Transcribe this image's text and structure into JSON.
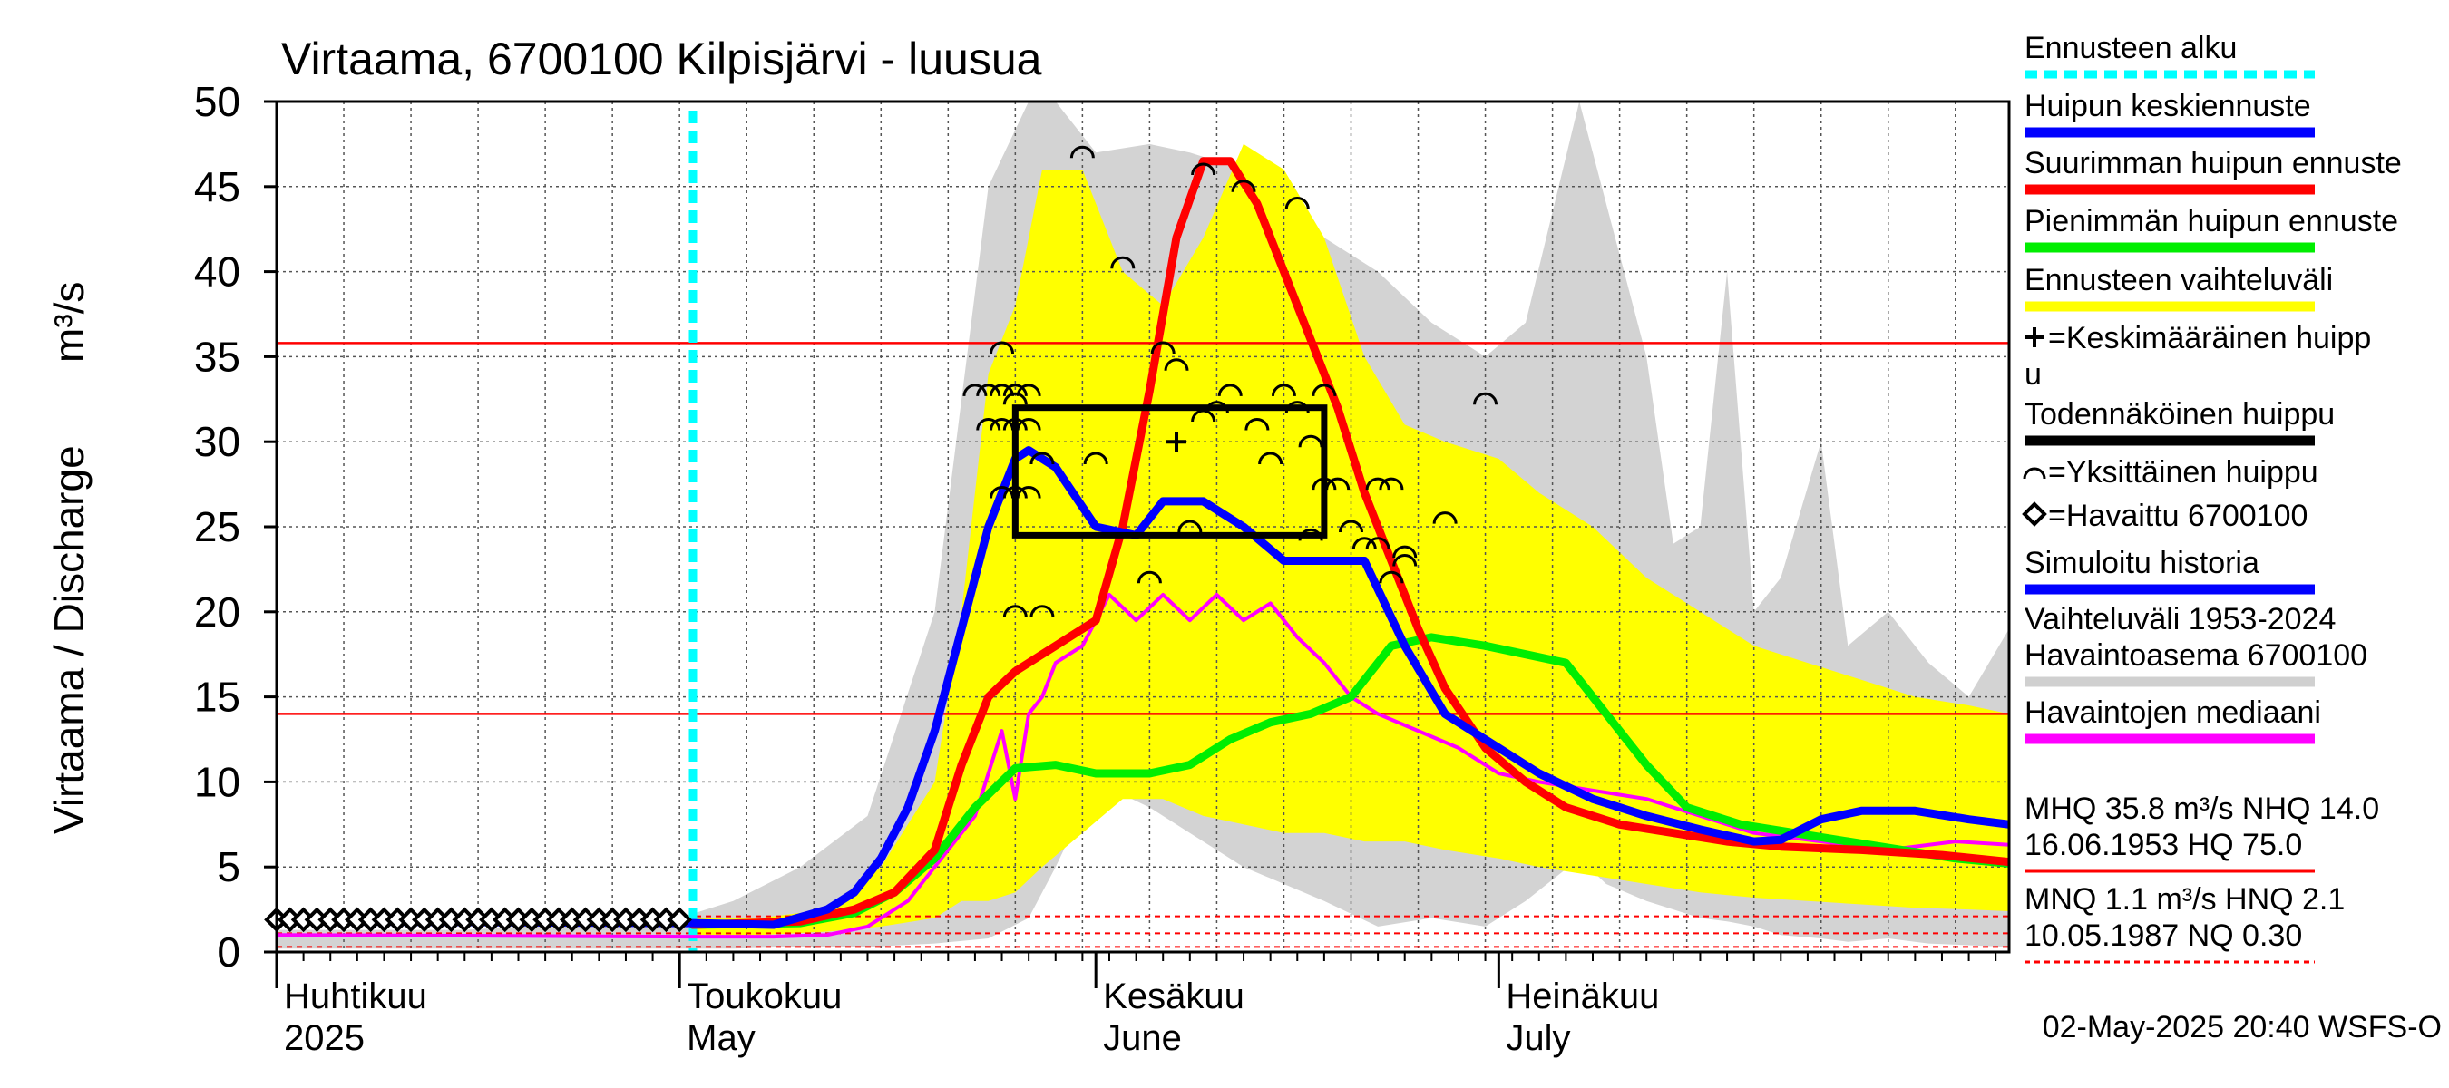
{
  "chart_data": {
    "type": "line",
    "title": "Virtaama, 6700100 Kilpisjärvi - luusua",
    "ylabel": "Virtaama / Discharge",
    "yunit": "m³/s",
    "ylim": [
      0,
      50
    ],
    "yticks": [
      0,
      5,
      10,
      15,
      20,
      25,
      30,
      35,
      40,
      45,
      50
    ],
    "xlim": [
      "2025-04-01",
      "2025-08-08"
    ],
    "x_month_labels": [
      {
        "line1": "Huhtikuu",
        "line2": "2025",
        "date": "2025-04-01"
      },
      {
        "line1": "Toukokuu",
        "line2": "May",
        "date": "2025-05-01"
      },
      {
        "line1": "Kesäkuu",
        "line2": "June",
        "date": "2025-06-01"
      },
      {
        "line1": "Heinäkuu",
        "line2": "July",
        "date": "2025-07-01"
      }
    ],
    "grid": true,
    "legend_position": "right",
    "forecast_start": "2025-05-02",
    "reference_lines": [
      {
        "name": "MHQ",
        "value": 35.8,
        "color": "#ff0000",
        "style": "solid"
      },
      {
        "name": "NHQ",
        "value": 14.0,
        "color": "#ff0000",
        "style": "solid"
      },
      {
        "name": "MNQ",
        "value": 1.1,
        "color": "#ff0000",
        "style": "dashed"
      },
      {
        "name": "HNQ",
        "value": 2.1,
        "color": "#ff0000",
        "style": "dashed"
      },
      {
        "name": "NQ",
        "value": 0.3,
        "color": "#ff0000",
        "style": "dashed"
      }
    ],
    "historical_range": {
      "x": [
        "2025-04-01",
        "2025-04-15",
        "2025-05-01",
        "2025-05-05",
        "2025-05-10",
        "2025-05-15",
        "2025-05-20",
        "2025-05-24",
        "2025-05-27",
        "2025-05-29",
        "2025-06-01",
        "2025-06-05",
        "2025-06-08",
        "2025-06-12",
        "2025-06-15",
        "2025-06-18",
        "2025-06-22",
        "2025-06-26",
        "2025-06-30",
        "2025-07-03",
        "2025-07-07",
        "2025-07-09",
        "2025-07-12",
        "2025-07-14",
        "2025-07-16",
        "2025-07-18",
        "2025-07-20",
        "2025-07-22",
        "2025-07-25",
        "2025-07-27",
        "2025-07-30",
        "2025-08-02",
        "2025-08-05",
        "2025-08-08"
      ],
      "max": [
        1.3,
        1.3,
        2.0,
        3.0,
        5.0,
        8.0,
        20.0,
        45.0,
        50.0,
        50.0,
        47.0,
        47.5,
        47.0,
        46.0,
        44.0,
        42.0,
        40.0,
        37.0,
        35.0,
        37.0,
        50.0,
        44.0,
        35.0,
        24.0,
        25.0,
        40.0,
        20.0,
        22.0,
        30.0,
        18.0,
        20.0,
        17.0,
        15.0,
        19.0
      ],
      "min": [
        0.2,
        0.2,
        0.2,
        0.2,
        0.3,
        0.3,
        0.5,
        0.8,
        2.0,
        5.0,
        10.0,
        8.5,
        7.0,
        5.0,
        4.0,
        3.0,
        1.5,
        2.0,
        1.5,
        3.0,
        5.5,
        4.0,
        3.0,
        2.5,
        2.0,
        1.8,
        1.5,
        1.0,
        0.8,
        0.6,
        0.8,
        0.5,
        0.4,
        0.3
      ]
    },
    "forecast_range": {
      "x": [
        "2025-05-02",
        "2025-05-07",
        "2025-05-12",
        "2025-05-16",
        "2025-05-20",
        "2025-05-22",
        "2025-05-24",
        "2025-05-26",
        "2025-05-28",
        "2025-05-31",
        "2025-06-03",
        "2025-06-06",
        "2025-06-09",
        "2025-06-12",
        "2025-06-15",
        "2025-06-18",
        "2025-06-21",
        "2025-06-24",
        "2025-06-27",
        "2025-07-01",
        "2025-07-04",
        "2025-07-08",
        "2025-07-12",
        "2025-07-16",
        "2025-07-20",
        "2025-07-24",
        "2025-07-28",
        "2025-08-01",
        "2025-08-05",
        "2025-08-08"
      ],
      "max": [
        2.0,
        2.0,
        2.5,
        5.0,
        10.0,
        20.0,
        34.0,
        38.0,
        46.0,
        46.0,
        40.0,
        38.0,
        42.0,
        47.5,
        46.0,
        42.0,
        35.0,
        31.0,
        30.0,
        29.0,
        27.0,
        25.0,
        22.0,
        20.0,
        18.0,
        17.0,
        16.0,
        15.0,
        14.5,
        14.0
      ],
      "min": [
        1.0,
        1.0,
        1.2,
        1.5,
        2.0,
        3.0,
        3.0,
        3.5,
        5.0,
        7.0,
        9.0,
        9.0,
        8.0,
        7.5,
        7.0,
        7.0,
        6.5,
        6.5,
        6.0,
        5.5,
        5.0,
        4.5,
        4.0,
        3.5,
        3.2,
        3.0,
        2.8,
        2.6,
        2.5,
        2.4
      ]
    },
    "series": [
      {
        "name": "Huipun keskiennuste",
        "color": "#0000ff",
        "x": [
          "2025-04-01",
          "2025-05-02",
          "2025-05-08",
          "2025-05-12",
          "2025-05-14",
          "2025-05-16",
          "2025-05-18",
          "2025-05-20",
          "2025-05-22",
          "2025-05-24",
          "2025-05-26",
          "2025-05-27",
          "2025-05-29",
          "2025-06-01",
          "2025-06-04",
          "2025-06-06",
          "2025-06-09",
          "2025-06-12",
          "2025-06-15",
          "2025-06-18",
          "2025-06-21",
          "2025-06-24",
          "2025-06-27",
          "2025-07-01",
          "2025-07-04",
          "2025-07-08",
          "2025-07-12",
          "2025-07-16",
          "2025-07-20",
          "2025-07-22",
          "2025-07-25",
          "2025-07-28",
          "2025-08-01",
          "2025-08-05",
          "2025-08-08"
        ],
        "y": [
          1.8,
          1.7,
          1.6,
          2.5,
          3.5,
          5.5,
          8.5,
          13.0,
          19.0,
          25.0,
          29.0,
          29.5,
          28.5,
          25.0,
          24.5,
          26.5,
          26.5,
          25.0,
          23.0,
          23.0,
          23.0,
          18.0,
          14.0,
          12.0,
          10.5,
          9.0,
          8.0,
          7.2,
          6.5,
          6.6,
          7.8,
          8.3,
          8.3,
          7.8,
          7.5
        ]
      },
      {
        "name": "Suurimman huipun ennuste",
        "color": "#ff0000",
        "x": [
          "2025-05-02",
          "2025-05-10",
          "2025-05-14",
          "2025-05-17",
          "2025-05-20",
          "2025-05-22",
          "2025-05-24",
          "2025-05-26",
          "2025-05-29",
          "2025-06-01",
          "2025-06-03",
          "2025-06-05",
          "2025-06-07",
          "2025-06-09",
          "2025-06-11",
          "2025-06-13",
          "2025-06-15",
          "2025-06-17",
          "2025-06-19",
          "2025-06-21",
          "2025-06-23",
          "2025-06-25",
          "2025-06-27",
          "2025-06-30",
          "2025-07-03",
          "2025-07-06",
          "2025-07-10",
          "2025-07-14",
          "2025-07-18",
          "2025-07-22",
          "2025-07-28",
          "2025-08-03",
          "2025-08-08"
        ],
        "y": [
          1.6,
          1.8,
          2.5,
          3.5,
          6.0,
          11.0,
          15.0,
          16.5,
          18.0,
          19.5,
          25.0,
          33.0,
          42.0,
          46.5,
          46.5,
          44.0,
          40.0,
          36.0,
          32.0,
          27.0,
          23.0,
          19.0,
          15.5,
          12.0,
          10.0,
          8.5,
          7.5,
          7.0,
          6.5,
          6.2,
          6.0,
          5.7,
          5.3
        ]
      },
      {
        "name": "Pienimmän huipun ennuste",
        "color": "#00ee00",
        "x": [
          "2025-05-02",
          "2025-05-10",
          "2025-05-14",
          "2025-05-17",
          "2025-05-20",
          "2025-05-23",
          "2025-05-26",
          "2025-05-29",
          "2025-06-01",
          "2025-06-05",
          "2025-06-08",
          "2025-06-11",
          "2025-06-14",
          "2025-06-17",
          "2025-06-20",
          "2025-06-23",
          "2025-06-26",
          "2025-06-30",
          "2025-07-03",
          "2025-07-06",
          "2025-07-09",
          "2025-07-12",
          "2025-07-15",
          "2025-07-19",
          "2025-07-23",
          "2025-07-27",
          "2025-07-31",
          "2025-08-04",
          "2025-08-08"
        ],
        "y": [
          1.6,
          1.7,
          2.3,
          3.5,
          5.5,
          8.5,
          10.8,
          11.0,
          10.5,
          10.5,
          11.0,
          12.5,
          13.5,
          14.0,
          15.0,
          18.0,
          18.5,
          18.0,
          17.5,
          17.0,
          14.0,
          11.0,
          8.5,
          7.5,
          7.0,
          6.5,
          6.0,
          5.5,
          5.2
        ]
      },
      {
        "name": "Havaintojen mediaani",
        "color": "#ff00ff",
        "x": [
          "2025-04-01",
          "2025-05-02",
          "2025-05-08",
          "2025-05-12",
          "2025-05-15",
          "2025-05-18",
          "2025-05-21",
          "2025-05-23",
          "2025-05-25",
          "2025-05-26",
          "2025-05-27",
          "2025-05-28",
          "2025-05-29",
          "2025-05-31",
          "2025-06-02",
          "2025-06-04",
          "2025-06-06",
          "2025-06-08",
          "2025-06-10",
          "2025-06-12",
          "2025-06-14",
          "2025-06-16",
          "2025-06-18",
          "2025-06-20",
          "2025-06-22",
          "2025-06-25",
          "2025-06-28",
          "2025-07-01",
          "2025-07-04",
          "2025-07-08",
          "2025-07-12",
          "2025-07-16",
          "2025-07-20",
          "2025-07-25",
          "2025-07-30",
          "2025-08-04",
          "2025-08-08"
        ],
        "y": [
          1.0,
          0.9,
          0.9,
          1.0,
          1.5,
          3.0,
          6.0,
          8.0,
          13.0,
          9.0,
          14.0,
          15.0,
          17.0,
          18.0,
          21.0,
          19.5,
          21.0,
          19.5,
          21.0,
          19.5,
          20.5,
          18.5,
          17.0,
          15.0,
          14.0,
          13.0,
          12.0,
          10.5,
          10.0,
          9.5,
          9.0,
          8.0,
          7.0,
          6.5,
          6.0,
          6.5,
          6.3
        ]
      }
    ],
    "observed": {
      "name": "Havaittu 6700100",
      "x": [
        "2025-04-01",
        "2025-04-02",
        "2025-04-03",
        "2025-04-04",
        "2025-04-05",
        "2025-04-06",
        "2025-04-07",
        "2025-04-08",
        "2025-04-09",
        "2025-04-10",
        "2025-04-11",
        "2025-04-12",
        "2025-04-13",
        "2025-04-14",
        "2025-04-15",
        "2025-04-16",
        "2025-04-17",
        "2025-04-18",
        "2025-04-19",
        "2025-04-20",
        "2025-04-21",
        "2025-04-22",
        "2025-04-23",
        "2025-04-24",
        "2025-04-25",
        "2025-04-26",
        "2025-04-27",
        "2025-04-28",
        "2025-04-29",
        "2025-04-30",
        "2025-05-01"
      ],
      "y": [
        1.9,
        1.9,
        1.9,
        1.9,
        1.9,
        1.9,
        1.9,
        1.9,
        1.9,
        1.9,
        1.9,
        1.9,
        1.9,
        1.9,
        1.9,
        1.9,
        1.9,
        1.9,
        1.9,
        1.9,
        1.9,
        1.9,
        1.9,
        1.9,
        1.9,
        1.9,
        1.9,
        1.9,
        1.9,
        1.9,
        1.9
      ]
    },
    "probable_peak_box": {
      "name": "Todennäköinen huippu",
      "x0": "2025-05-26",
      "x1": "2025-06-18",
      "y0": 24.5,
      "y1": 32.0
    },
    "mean_peak": {
      "name": "Keskimääräinen huippu",
      "x": "2025-06-07",
      "y": 30.0
    },
    "individual_peaks": {
      "x": [
        "2025-05-23",
        "2025-05-24",
        "2025-05-25",
        "2025-05-26",
        "2025-05-27",
        "2025-05-24",
        "2025-05-25",
        "2025-05-26",
        "2025-05-27",
        "2025-05-25",
        "2025-05-26",
        "2025-05-25",
        "2025-05-26",
        "2025-05-27",
        "2025-05-26",
        "2025-05-28",
        "2025-05-31",
        "2025-06-03",
        "2025-06-05",
        "2025-06-06",
        "2025-06-07",
        "2025-06-09",
        "2025-06-10",
        "2025-06-11",
        "2025-06-13",
        "2025-06-15",
        "2025-06-16",
        "2025-06-17",
        "2025-06-18",
        "2025-06-18",
        "2025-06-19",
        "2025-06-20",
        "2025-06-21",
        "2025-06-22",
        "2025-06-23",
        "2025-06-24",
        "2025-06-27",
        "2025-06-30",
        "2025-06-24",
        "2025-06-23",
        "2025-06-22",
        "2025-06-08",
        "2025-05-28",
        "2025-06-01",
        "2025-06-09",
        "2025-06-12",
        "2025-06-16",
        "2025-06-14",
        "2025-06-17"
      ],
      "y": [
        33,
        33,
        33,
        33,
        33,
        31,
        31,
        31,
        31,
        35.5,
        32.5,
        27,
        27,
        27,
        20,
        20,
        47,
        40.5,
        22,
        35.5,
        34.5,
        31.5,
        32,
        33,
        31,
        33,
        32,
        30,
        33,
        27.5,
        27.5,
        25,
        24,
        24,
        22,
        23.5,
        25.5,
        32.5,
        23,
        27.5,
        27.5,
        25,
        29,
        29,
        46,
        45,
        44,
        29,
        24.5
      ]
    }
  },
  "legend": {
    "items": [
      {
        "label": "Ennusteen alku",
        "color": "#00ffff",
        "style": "dotted"
      },
      {
        "label": "Huipun keskiennuste",
        "color": "#0000ff",
        "style": "line"
      },
      {
        "label": "Suurimman huipun ennuste",
        "color": "#ff0000",
        "style": "line"
      },
      {
        "label": "Pienimmän huipun ennuste",
        "color": "#00ee00",
        "style": "line"
      },
      {
        "label": "Ennusteen vaihteluväli",
        "color": "#ffff00",
        "style": "line"
      },
      {
        "label": "=Keskimääräinen huipp",
        "label2": "u",
        "color": "#000000",
        "style": "plus"
      },
      {
        "label": "Todennäköinen huippu",
        "color": "#000000",
        "style": "line"
      },
      {
        "label": "=Yksittäinen huippu",
        "color": "#000000",
        "style": "arc"
      },
      {
        "label": "=Havaittu 6700100",
        "color": "#000000",
        "style": "diamond"
      },
      {
        "label": "Simuloitu historia",
        "color": "#0000ff",
        "style": "line"
      },
      {
        "label": "Vaihteluväli 1953-2024",
        "label2": " Havaintoasema 6700100",
        "color": "#d0d0d0",
        "style": "line"
      },
      {
        "label": "Havaintojen mediaani",
        "color": "#ff00ff",
        "style": "line"
      },
      {
        "label": "MHQ 35.8 m³/s NHQ 14.0",
        "label2": "16.06.1953 HQ 75.0",
        "color": "#ff0000",
        "style": "thin"
      },
      {
        "label": "MNQ  1.1 m³/s HNQ  2.1",
        "label2": "10.05.1987 NQ 0.30",
        "color": "#ff0000",
        "style": "dashed"
      }
    ]
  },
  "footer": {
    "timestamp": "02-May-2025 20:40 WSFS-O"
  }
}
